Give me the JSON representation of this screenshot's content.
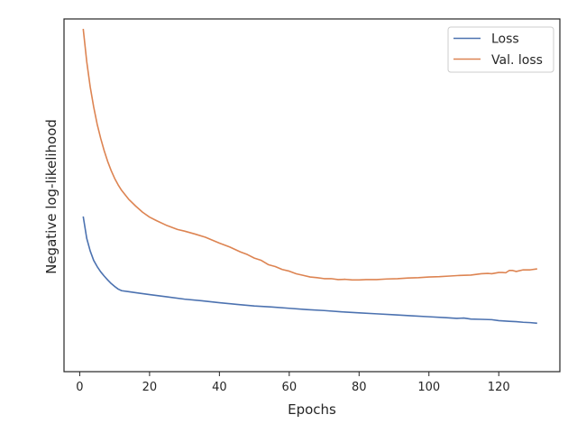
{
  "chart_data": {
    "type": "line",
    "title": "",
    "xlabel": "Epochs",
    "ylabel": "Negative log-likelihood",
    "xlim": [
      -4.5,
      137.5
    ],
    "ylim": [
      0,
      1
    ],
    "xticks": [
      0,
      20,
      40,
      60,
      80,
      100,
      120
    ],
    "xtick_labels": [
      "0",
      "20",
      "40",
      "60",
      "80",
      "100",
      "120"
    ],
    "y_tick_labels_shown": false,
    "grid": false,
    "legend": {
      "position": "top-right"
    },
    "series": [
      {
        "name": "Loss",
        "color": "#4c72b0",
        "points": [
          [
            1,
            0.424
          ],
          [
            2,
            0.357
          ],
          [
            3,
            0.318
          ],
          [
            4,
            0.289
          ],
          [
            5,
            0.27
          ],
          [
            6,
            0.254
          ],
          [
            7,
            0.241
          ],
          [
            8,
            0.229
          ],
          [
            9,
            0.218
          ],
          [
            10,
            0.209
          ],
          [
            11,
            0.201
          ],
          [
            12,
            0.196
          ],
          [
            14,
            0.193
          ],
          [
            16,
            0.19
          ],
          [
            20,
            0.184
          ],
          [
            25,
            0.177
          ],
          [
            30,
            0.17
          ],
          [
            35,
            0.165
          ],
          [
            40,
            0.159
          ],
          [
            45,
            0.154
          ],
          [
            50,
            0.149
          ],
          [
            55,
            0.146
          ],
          [
            60,
            0.142
          ],
          [
            65,
            0.138
          ],
          [
            70,
            0.135
          ],
          [
            75,
            0.131
          ],
          [
            80,
            0.128
          ],
          [
            85,
            0.125
          ],
          [
            90,
            0.122
          ],
          [
            95,
            0.119
          ],
          [
            100,
            0.116
          ],
          [
            105,
            0.113
          ],
          [
            108,
            0.111
          ],
          [
            110,
            0.112
          ],
          [
            112,
            0.109
          ],
          [
            115,
            0.108
          ],
          [
            118,
            0.107
          ],
          [
            120,
            0.104
          ],
          [
            123,
            0.102
          ],
          [
            125,
            0.101
          ],
          [
            127,
            0.099
          ],
          [
            129,
            0.098
          ],
          [
            131,
            0.096
          ]
        ]
      },
      {
        "name": "Val. loss",
        "color": "#dd8452",
        "points": [
          [
            1,
            1.0
          ],
          [
            2,
            0.9
          ],
          [
            3,
            0.822
          ],
          [
            4,
            0.76
          ],
          [
            5,
            0.707
          ],
          [
            6,
            0.664
          ],
          [
            7,
            0.626
          ],
          [
            8,
            0.593
          ],
          [
            9,
            0.565
          ],
          [
            10,
            0.541
          ],
          [
            11,
            0.521
          ],
          [
            12,
            0.504
          ],
          [
            14,
            0.477
          ],
          [
            16,
            0.456
          ],
          [
            18,
            0.437
          ],
          [
            20,
            0.422
          ],
          [
            22,
            0.411
          ],
          [
            25,
            0.396
          ],
          [
            28,
            0.384
          ],
          [
            30,
            0.379
          ],
          [
            33,
            0.37
          ],
          [
            36,
            0.36
          ],
          [
            40,
            0.342
          ],
          [
            43,
            0.33
          ],
          [
            46,
            0.315
          ],
          [
            48,
            0.307
          ],
          [
            50,
            0.296
          ],
          [
            52,
            0.289
          ],
          [
            54,
            0.276
          ],
          [
            56,
            0.27
          ],
          [
            58,
            0.261
          ],
          [
            60,
            0.256
          ],
          [
            62,
            0.248
          ],
          [
            64,
            0.243
          ],
          [
            66,
            0.238
          ],
          [
            68,
            0.236
          ],
          [
            70,
            0.233
          ],
          [
            72,
            0.233
          ],
          [
            74,
            0.23
          ],
          [
            76,
            0.231
          ],
          [
            78,
            0.229
          ],
          [
            80,
            0.229
          ],
          [
            82,
            0.23
          ],
          [
            85,
            0.23
          ],
          [
            88,
            0.232
          ],
          [
            91,
            0.233
          ],
          [
            94,
            0.235
          ],
          [
            97,
            0.236
          ],
          [
            100,
            0.238
          ],
          [
            103,
            0.239
          ],
          [
            106,
            0.241
          ],
          [
            109,
            0.243
          ],
          [
            112,
            0.244
          ],
          [
            115,
            0.248
          ],
          [
            117,
            0.249
          ],
          [
            118,
            0.248
          ],
          [
            120,
            0.252
          ],
          [
            121,
            0.252
          ],
          [
            122,
            0.251
          ],
          [
            123,
            0.258
          ],
          [
            124,
            0.258
          ],
          [
            125,
            0.255
          ],
          [
            127,
            0.26
          ],
          [
            129,
            0.26
          ],
          [
            131,
            0.263
          ]
        ]
      }
    ]
  }
}
